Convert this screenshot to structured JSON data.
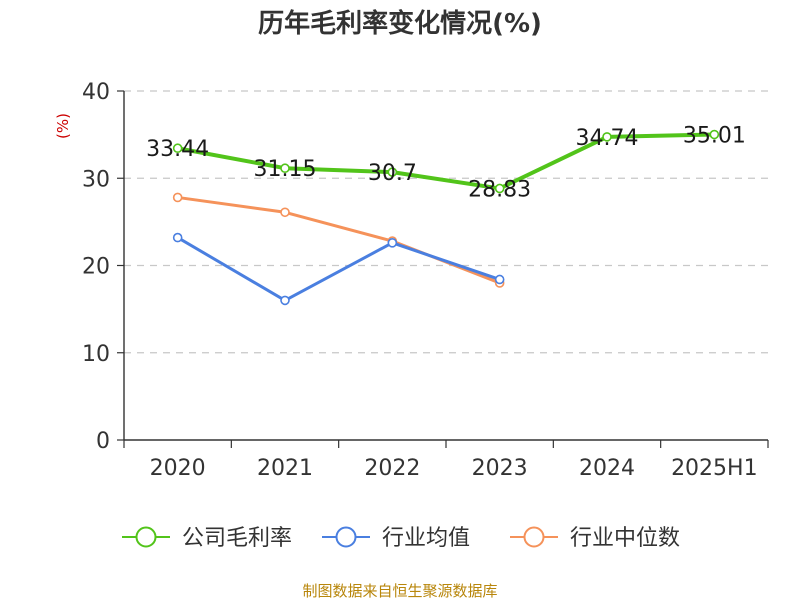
{
  "chart_data": {
    "type": "line",
    "title": "历年毛利率变化情况(%)",
    "unit_label": "(%)",
    "categories": [
      "2020",
      "2021",
      "2022",
      "2023",
      "2024",
      "2025H1"
    ],
    "ylim": [
      0,
      40
    ],
    "yticks": [
      0,
      10,
      20,
      30,
      40
    ],
    "grid": true,
    "legend_position": "bottom",
    "series": [
      {
        "name": "公司毛利率",
        "color": "#52c41a",
        "values": [
          33.44,
          31.15,
          30.7,
          28.83,
          34.74,
          35.01
        ],
        "data_labels": [
          "33.44",
          "31.15",
          "30.7",
          "28.83",
          "34.74",
          "35.01"
        ]
      },
      {
        "name": "行业均值",
        "color": "#4a7fe0",
        "values": [
          23.2,
          16.0,
          22.6,
          18.4,
          null,
          null
        ]
      },
      {
        "name": "行业中位数",
        "color": "#f5925a",
        "values": [
          27.8,
          26.1,
          22.8,
          18.0,
          null,
          null
        ]
      }
    ]
  },
  "source_text": "制图数据来自恒生聚源数据库"
}
